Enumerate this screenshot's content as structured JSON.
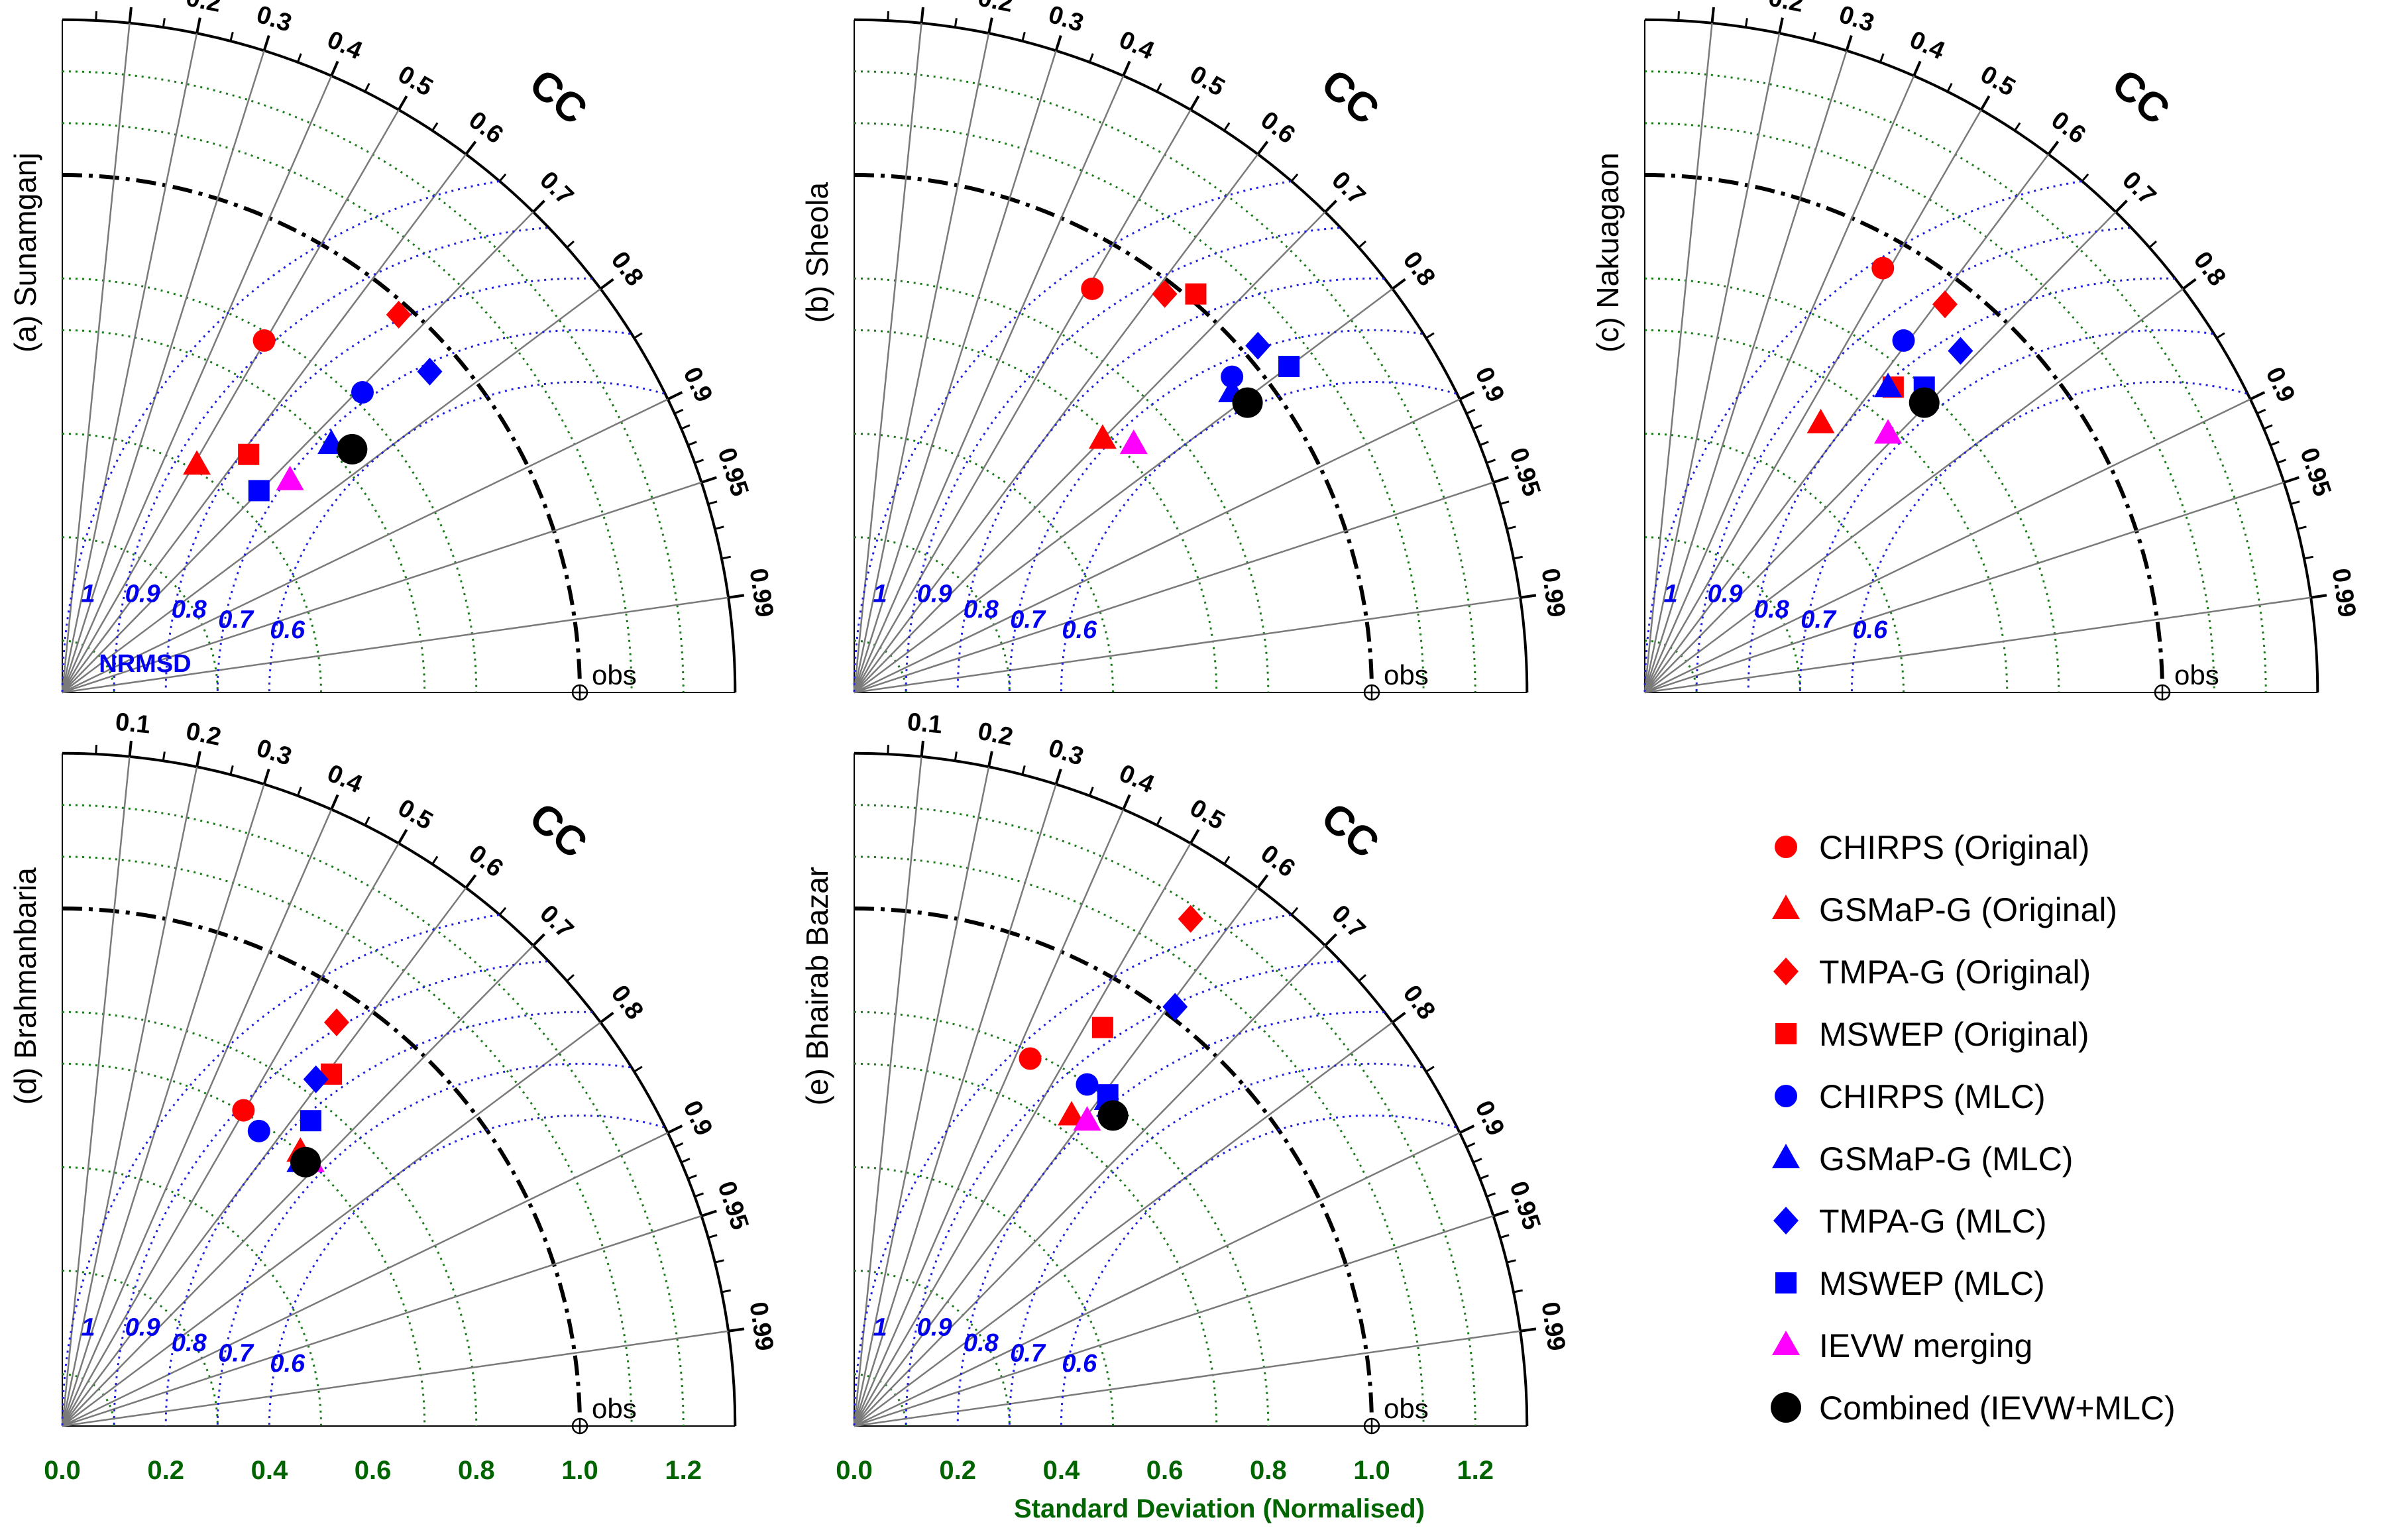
{
  "chart_data": {
    "type": "scatter",
    "subtype": "taylor-diagram",
    "x_axis_label": "Standard Deviation (Normalised)",
    "x_ticks": [
      "0.0",
      "0.2",
      "0.4",
      "0.6",
      "0.8",
      "1.0",
      "1.2"
    ],
    "sd_range": [
      0,
      1.3
    ],
    "cc_label": "CC",
    "cc_ticks": [
      "0.1",
      "0.2",
      "0.3",
      "0.4",
      "0.5",
      "0.6",
      "0.7",
      "0.8",
      "0.9",
      "0.95",
      "0.99"
    ],
    "rmsd_label": "NRMSD",
    "rmsd_ticks": [
      "1",
      "0.9",
      "0.8",
      "0.7",
      "0.6"
    ],
    "reference_label": "obs",
    "reference_sd": 1.0,
    "legend_position": "right",
    "series": [
      {
        "name": "CHIRPS (Original)",
        "color": "#ff0000",
        "marker": "circle"
      },
      {
        "name": "GSMaP-G (Original)",
        "color": "#ff0000",
        "marker": "triangle"
      },
      {
        "name": "TMPA-G (Original)",
        "color": "#ff0000",
        "marker": "diamond"
      },
      {
        "name": "MSWEP (Original)",
        "color": "#ff0000",
        "marker": "square"
      },
      {
        "name": "CHIRPS (MLC)",
        "color": "#0000ff",
        "marker": "circle"
      },
      {
        "name": "GSMaP-G (MLC)",
        "color": "#0000ff",
        "marker": "triangle"
      },
      {
        "name": "TMPA-G (MLC)",
        "color": "#0000ff",
        "marker": "diamond"
      },
      {
        "name": "MSWEP (MLC)",
        "color": "#0000ff",
        "marker": "square"
      },
      {
        "name": "IEVW merging",
        "color": "#ff00ff",
        "marker": "triangle"
      },
      {
        "name": "Combined (IEVW+MLC)",
        "color": "#000000",
        "marker": "bigcircle"
      }
    ],
    "panels": [
      {
        "title": "(a) Sunamganj",
        "points": [
          {
            "x": 0.39,
            "y": 0.68
          },
          {
            "x": 0.26,
            "y": 0.44
          },
          {
            "x": 0.65,
            "y": 0.73
          },
          {
            "x": 0.36,
            "y": 0.46
          },
          {
            "x": 0.58,
            "y": 0.58
          },
          {
            "x": 0.52,
            "y": 0.48
          },
          {
            "x": 0.71,
            "y": 0.62
          },
          {
            "x": 0.38,
            "y": 0.39
          },
          {
            "x": 0.44,
            "y": 0.41
          },
          {
            "x": 0.56,
            "y": 0.47
          }
        ]
      },
      {
        "title": "(b) Sheola",
        "points": [
          {
            "x": 0.46,
            "y": 0.78
          },
          {
            "x": 0.48,
            "y": 0.49
          },
          {
            "x": 0.6,
            "y": 0.77
          },
          {
            "x": 0.66,
            "y": 0.77
          },
          {
            "x": 0.73,
            "y": 0.61
          },
          {
            "x": 0.73,
            "y": 0.58
          },
          {
            "x": 0.78,
            "y": 0.67
          },
          {
            "x": 0.84,
            "y": 0.63
          },
          {
            "x": 0.54,
            "y": 0.48
          },
          {
            "x": 0.76,
            "y": 0.56
          }
        ]
      },
      {
        "title": "(c) Nakuagaon",
        "points": [
          {
            "x": 0.46,
            "y": 0.82
          },
          {
            "x": 0.34,
            "y": 0.52
          },
          {
            "x": 0.58,
            "y": 0.75
          },
          {
            "x": 0.48,
            "y": 0.59
          },
          {
            "x": 0.5,
            "y": 0.68
          },
          {
            "x": 0.47,
            "y": 0.59
          },
          {
            "x": 0.61,
            "y": 0.66
          },
          {
            "x": 0.54,
            "y": 0.59
          },
          {
            "x": 0.47,
            "y": 0.5
          },
          {
            "x": 0.54,
            "y": 0.56
          }
        ]
      },
      {
        "title": "(d) Brahmanbaria",
        "points": [
          {
            "x": 0.35,
            "y": 0.61
          },
          {
            "x": 0.46,
            "y": 0.53
          },
          {
            "x": 0.53,
            "y": 0.78
          },
          {
            "x": 0.52,
            "y": 0.68
          },
          {
            "x": 0.38,
            "y": 0.57
          },
          {
            "x": 0.46,
            "y": 0.51
          },
          {
            "x": 0.49,
            "y": 0.67
          },
          {
            "x": 0.48,
            "y": 0.59
          },
          {
            "x": 0.48,
            "y": 0.51
          },
          {
            "x": 0.47,
            "y": 0.51
          }
        ]
      },
      {
        "title": "(e) Bhairab Bazar",
        "points": [
          {
            "x": 0.34,
            "y": 0.71
          },
          {
            "x": 0.42,
            "y": 0.6
          },
          {
            "x": 0.65,
            "y": 0.98
          },
          {
            "x": 0.48,
            "y": 0.77
          },
          {
            "x": 0.45,
            "y": 0.66
          },
          {
            "x": 0.49,
            "y": 0.63
          },
          {
            "x": 0.62,
            "y": 0.81
          },
          {
            "x": 0.49,
            "y": 0.64
          },
          {
            "x": 0.45,
            "y": 0.59
          },
          {
            "x": 0.5,
            "y": 0.6
          }
        ]
      }
    ]
  }
}
